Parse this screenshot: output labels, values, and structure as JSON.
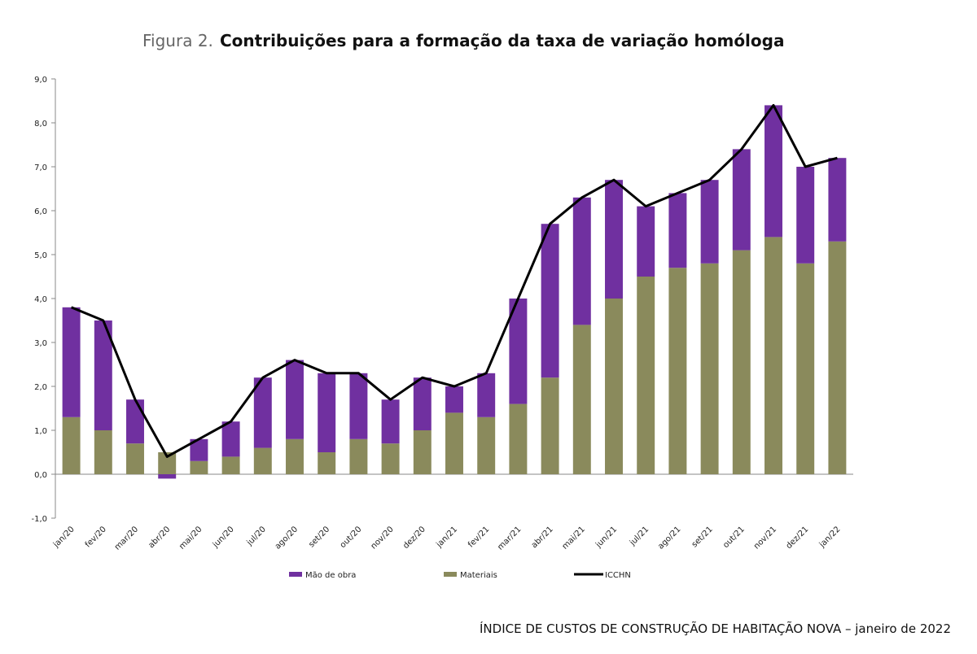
{
  "chart_data": {
    "type": "bar",
    "stacked": true,
    "figure_label": "Figura 2.",
    "title": "Contribuições para a formação da taxa de variação homóloga",
    "footer": "ÍNDICE DE CUSTOS DE CONSTRUÇÃO DE HABITAÇÃO NOVA – janeiro de 2022",
    "categories": [
      "jan/20",
      "fev/20",
      "mar/20",
      "abr/20",
      "mai/20",
      "jun/20",
      "jul/20",
      "ago/20",
      "set/20",
      "out/20",
      "nov/20",
      "dez/20",
      "jan/21",
      "fev/21",
      "mar/21",
      "abr/21",
      "mai/21",
      "jun/21",
      "jul/21",
      "ago/21",
      "set/21",
      "out/21",
      "nov/21",
      "dez/21",
      "jan/22"
    ],
    "series": [
      {
        "name": "Mão de obra",
        "color": "#7030a0",
        "values": [
          2.5,
          2.5,
          1.0,
          -0.1,
          0.5,
          0.8,
          1.6,
          1.8,
          1.8,
          1.5,
          1.0,
          1.2,
          0.6,
          1.0,
          2.4,
          3.5,
          2.9,
          2.7,
          1.6,
          1.7,
          1.9,
          2.3,
          3.0,
          2.2,
          1.9
        ]
      },
      {
        "name": "Materiais",
        "color": "#8a8a5c",
        "values": [
          1.3,
          1.0,
          0.7,
          0.5,
          0.3,
          0.4,
          0.6,
          0.8,
          0.5,
          0.8,
          0.7,
          1.0,
          1.4,
          1.3,
          1.6,
          2.2,
          3.4,
          4.0,
          4.5,
          4.7,
          4.8,
          5.1,
          5.4,
          4.8,
          5.3
        ]
      },
      {
        "name": "ICCHN",
        "type": "line",
        "color": "#000000",
        "values": [
          3.8,
          3.5,
          1.7,
          0.4,
          0.8,
          1.2,
          2.2,
          2.6,
          2.3,
          2.3,
          1.7,
          2.2,
          2.0,
          2.3,
          4.0,
          5.7,
          6.3,
          6.7,
          6.1,
          6.4,
          6.7,
          7.4,
          8.4,
          7.0,
          7.2
        ]
      }
    ],
    "ylim": [
      -1,
      9
    ],
    "yticks": [
      {
        "value": -1,
        "label": "-1,0"
      },
      {
        "value": 0,
        "label": "0,0"
      },
      {
        "value": 1,
        "label": "1,0"
      },
      {
        "value": 2,
        "label": "2,0"
      },
      {
        "value": 3,
        "label": "3,0"
      },
      {
        "value": 4,
        "label": "4,0"
      },
      {
        "value": 5,
        "label": "5,0"
      },
      {
        "value": 6,
        "label": "6,0"
      },
      {
        "value": 7,
        "label": "7,0"
      },
      {
        "value": 8,
        "label": "8,0"
      },
      {
        "value": 9,
        "label": "9,0"
      }
    ],
    "grid": false,
    "legend": "bottom"
  }
}
